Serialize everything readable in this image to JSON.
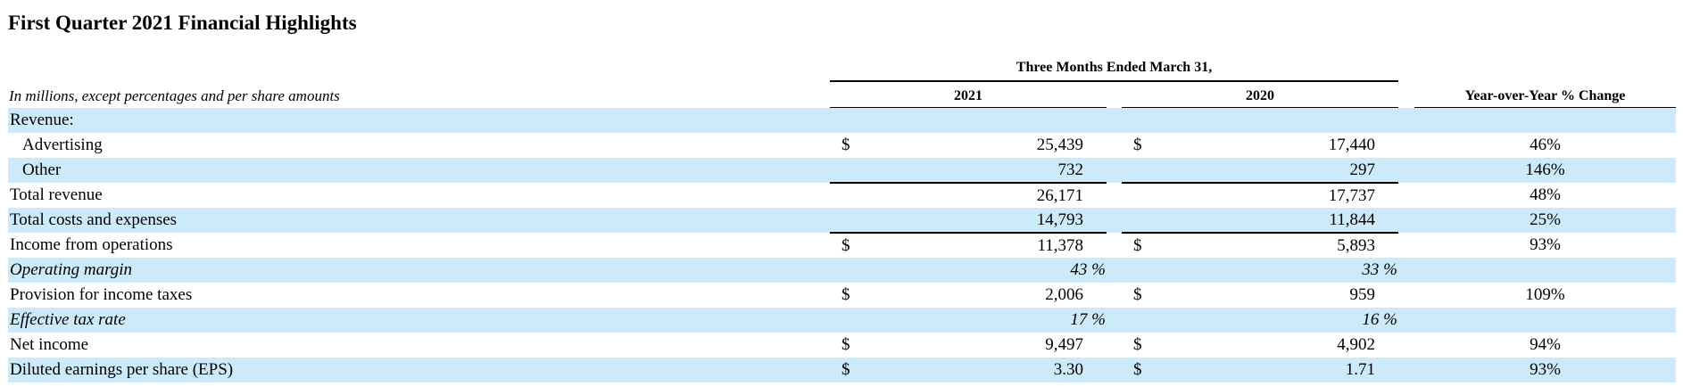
{
  "title": "First Quarter 2021 Financial Highlights",
  "period_header": "Three Months Ended March 31,",
  "units_note": "In millions, except percentages and per share amounts",
  "columns": {
    "y2021": "2021",
    "y2020": "2020",
    "yoy": "Year-over-Year % Change"
  },
  "currency_symbol": "$",
  "rows": [
    {
      "label": "Revenue:",
      "dollar_2021": "",
      "v2021": "",
      "dollar_2020": "",
      "v2020": "",
      "yoy": ""
    },
    {
      "label": "Advertising",
      "dollar_2021": "$",
      "v2021": "25,439",
      "dollar_2020": "$",
      "v2020": "17,440",
      "yoy": "46%"
    },
    {
      "label": "Other",
      "dollar_2021": "",
      "v2021": "732",
      "dollar_2020": "",
      "v2020": "297",
      "yoy": "146%"
    },
    {
      "label": "Total revenue",
      "dollar_2021": "",
      "v2021": "26,171",
      "dollar_2020": "",
      "v2020": "17,737",
      "yoy": "48%"
    },
    {
      "label": "Total costs and expenses",
      "dollar_2021": "",
      "v2021": "14,793",
      "dollar_2020": "",
      "v2020": "11,844",
      "yoy": "25%"
    },
    {
      "label": "Income from operations",
      "dollar_2021": "$",
      "v2021": "11,378",
      "dollar_2020": "$",
      "v2020": "5,893",
      "yoy": "93%"
    },
    {
      "label": "Operating margin",
      "dollar_2021": "",
      "v2021": "43 %",
      "dollar_2020": "",
      "v2020": "33 %",
      "yoy": ""
    },
    {
      "label": "Provision for income taxes",
      "dollar_2021": "$",
      "v2021": "2,006",
      "dollar_2020": "$",
      "v2020": "959",
      "yoy": "109%"
    },
    {
      "label": "Effective tax rate",
      "dollar_2021": "",
      "v2021": "17 %",
      "dollar_2020": "",
      "v2020": "16 %",
      "yoy": ""
    },
    {
      "label": "Net income",
      "dollar_2021": "$",
      "v2021": "9,497",
      "dollar_2020": "$",
      "v2020": "4,902",
      "yoy": "94%"
    },
    {
      "label": "Diluted earnings per share (EPS)",
      "dollar_2021": "$",
      "v2021": "3.30",
      "dollar_2020": "$",
      "v2020": "1.71",
      "yoy": "93%"
    }
  ]
}
